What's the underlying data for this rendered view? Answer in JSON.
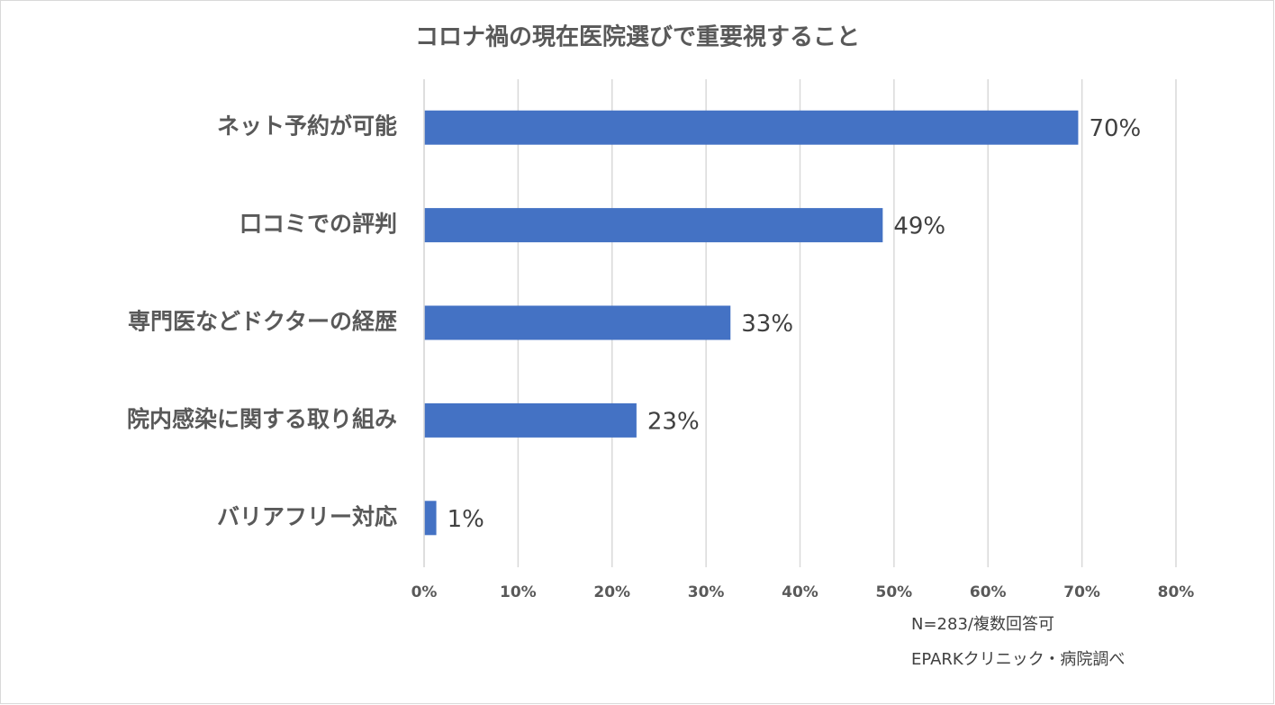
{
  "chart_data": {
    "type": "hbar",
    "title": "コロナ禍の現在医院選びで重要視すること",
    "categories": [
      "ネット予約が可能",
      "口コミでの評判",
      "専門医などドクターの経歴",
      "院内感染に関する取り組み",
      "バリアフリー対応"
    ],
    "values": [
      69.6,
      48.8,
      32.6,
      22.6,
      1.3
    ],
    "value_labels": [
      "70%",
      "49%",
      "33%",
      "23%",
      "1%"
    ],
    "color": "#4472c4",
    "xlim": [
      0,
      80
    ],
    "xticks": [
      {
        "value": 0,
        "label": "0%"
      },
      {
        "value": 10,
        "label": "10%"
      },
      {
        "value": 20,
        "label": "20%"
      },
      {
        "value": 30,
        "label": "30%"
      },
      {
        "value": 40,
        "label": "40%"
      },
      {
        "value": 50,
        "label": "50%"
      },
      {
        "value": 60,
        "label": "60%"
      },
      {
        "value": 70,
        "label": "70%"
      },
      {
        "value": 80,
        "label": "80%"
      }
    ],
    "grid": true,
    "annotations": [
      "N=283/複数回答可",
      "EPARKクリニック・病院調べ"
    ]
  }
}
